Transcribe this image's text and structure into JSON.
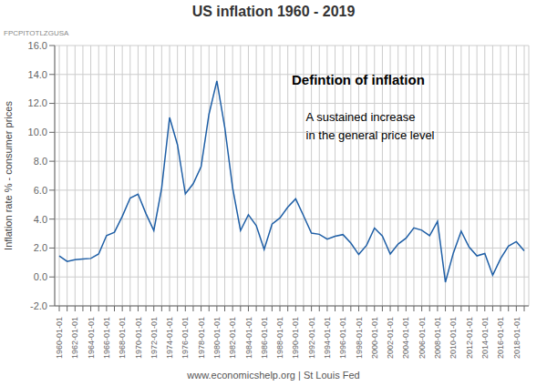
{
  "chart_data": {
    "type": "line",
    "title": "US inflation 1960 - 2019",
    "ylabel": "Inflation rate % - consumer prices",
    "annotations": [
      "FPCPITOTLZGUSA",
      "Defintion of inflation",
      "A sustained increase \nin the general price level",
      "www.economicshelp.org | St Louis Fed"
    ],
    "categories": [
      "1960-01-01",
      null,
      "1962-01-01",
      null,
      "1964-01-01",
      null,
      "1966-01-01",
      null,
      "1968-01-01",
      null,
      "1970-01-01",
      null,
      "1972-01-01",
      null,
      "1974-01-01",
      null,
      "1976-01-01",
      null,
      "1978-01-01",
      null,
      "1980-01-01",
      null,
      "1982-01-01",
      null,
      "1984-01-01",
      null,
      "1986-01-01",
      null,
      "1988-01-01",
      null,
      "1990-01-01",
      null,
      "1992-01-01",
      null,
      "1994-01-01",
      null,
      "1996-01-01",
      null,
      "1998-01-01",
      null,
      "2000-01-01",
      null,
      "2002-01-01",
      null,
      "2004-01-01",
      null,
      "2006-01-01",
      null,
      "2008-01-01",
      null,
      "2010-01-01",
      null,
      "2012-01-01",
      null,
      "2014-01-01",
      null,
      "2016-01-01",
      null,
      "2018-01-01",
      null
    ],
    "values": [
      1.46,
      1.07,
      1.2,
      1.24,
      1.28,
      1.59,
      2.86,
      3.09,
      4.19,
      5.46,
      5.72,
      4.38,
      3.21,
      6.16,
      11.03,
      9.14,
      5.74,
      6.45,
      7.62,
      11.25,
      13.55,
      10.35,
      6.16,
      3.21,
      4.3,
      3.55,
      1.9,
      3.65,
      4.08,
      4.83,
      5.4,
      4.23,
      3.03,
      2.95,
      2.61,
      2.81,
      2.93,
      2.34,
      1.55,
      2.19,
      3.38,
      2.83,
      1.59,
      2.27,
      2.68,
      3.39,
      3.23,
      2.85,
      3.84,
      -0.36,
      1.64,
      3.16,
      2.07,
      1.46,
      1.62,
      0.12,
      1.26,
      2.13,
      2.44,
      1.81
    ],
    "color": "#1f5fa6",
    "ylim": [
      -2.0,
      16.0
    ],
    "yticks": [
      {
        "value": -2.0,
        "label": "-2.0"
      },
      {
        "value": 0.0,
        "label": "0.0"
      },
      {
        "value": 2.0,
        "label": "2.0"
      },
      {
        "value": 4.0,
        "label": "4.0"
      },
      {
        "value": 6.0,
        "label": "6.0"
      },
      {
        "value": 8.0,
        "label": "8.0"
      },
      {
        "value": 10.0,
        "label": "10.0"
      },
      {
        "value": 12.0,
        "label": "12.0"
      },
      {
        "value": 14.0,
        "label": "14.0"
      },
      {
        "value": 16.0,
        "label": "16.0"
      }
    ],
    "grid": true
  }
}
